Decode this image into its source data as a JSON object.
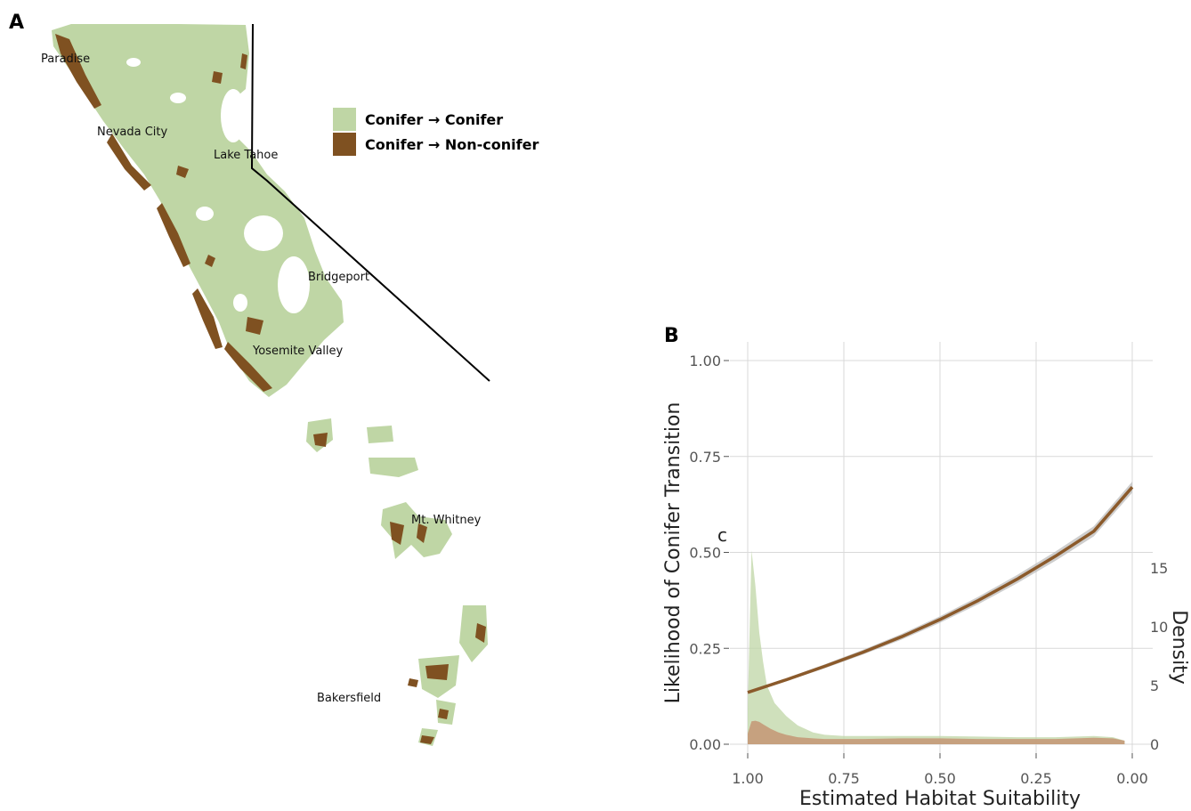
{
  "panel_a": {
    "letter": "A",
    "places": [
      {
        "id": "paradise",
        "name": "Paradise"
      },
      {
        "id": "nevada-city",
        "name": "Nevada City"
      },
      {
        "id": "lake-tahoe",
        "name": "Lake Tahoe"
      },
      {
        "id": "bridgeport",
        "name": "Bridgeport"
      },
      {
        "id": "yosemite-valley",
        "name": "Yosemite Valley"
      },
      {
        "id": "mt-whitney",
        "name": "Mt. Whitney"
      },
      {
        "id": "bakersfield",
        "name": "Bakersfield"
      }
    ],
    "legend": [
      {
        "label": "Conifer → Conifer",
        "color": "#bfd6a5"
      },
      {
        "label": "Conifer → Non-conifer",
        "color": "#7f5121"
      }
    ]
  },
  "panel_b": {
    "letter": "B",
    "stray_label": "c"
  },
  "chart_data": {
    "type": "line",
    "xlabel": "Estimated Habitat Suitability",
    "ylabel": "Likelihood of Conifer Transition",
    "y2label": "Density",
    "x_reversed": true,
    "xlim": [
      1.0,
      0.0
    ],
    "ylim": [
      0.0,
      1.0
    ],
    "x_ticks": [
      "1.00",
      "0.75",
      "0.50",
      "0.25",
      "0.00"
    ],
    "y_ticks": [
      "0.00",
      "0.25",
      "0.50",
      "0.75",
      "1.00"
    ],
    "y2_ticks": [
      "0",
      "5",
      "10",
      "15"
    ],
    "grid": true,
    "series": [
      {
        "kind": "line",
        "color": "#8b5a2b",
        "x": [
          1.0,
          0.9,
          0.8,
          0.7,
          0.6,
          0.5,
          0.4,
          0.3,
          0.2,
          0.1,
          0.0
        ],
        "y": [
          0.135,
          0.168,
          0.203,
          0.24,
          0.28,
          0.325,
          0.375,
          0.43,
          0.49,
          0.555,
          0.67
        ]
      },
      {
        "kind": "density",
        "color": "#bfd6a5",
        "x": [
          1.0,
          0.99,
          0.98,
          0.97,
          0.96,
          0.95,
          0.93,
          0.9,
          0.87,
          0.83,
          0.8,
          0.75,
          0.7,
          0.6,
          0.5,
          0.4,
          0.3,
          0.2,
          0.1,
          0.05,
          0.02
        ],
        "y": [
          3.0,
          16.5,
          13.5,
          9.5,
          7.0,
          5.0,
          3.5,
          2.4,
          1.6,
          1.0,
          0.8,
          0.7,
          0.7,
          0.7,
          0.7,
          0.65,
          0.6,
          0.6,
          0.7,
          0.6,
          0.3
        ]
      },
      {
        "kind": "density",
        "color": "#c49a78",
        "x": [
          1.0,
          0.99,
          0.98,
          0.97,
          0.96,
          0.94,
          0.92,
          0.9,
          0.87,
          0.83,
          0.8,
          0.75,
          0.7,
          0.6,
          0.5,
          0.4,
          0.3,
          0.2,
          0.1,
          0.05,
          0.02
        ],
        "y": [
          0.9,
          1.95,
          2.0,
          1.9,
          1.7,
          1.3,
          1.0,
          0.8,
          0.6,
          0.5,
          0.45,
          0.45,
          0.45,
          0.5,
          0.5,
          0.45,
          0.45,
          0.45,
          0.55,
          0.5,
          0.3
        ]
      }
    ]
  }
}
